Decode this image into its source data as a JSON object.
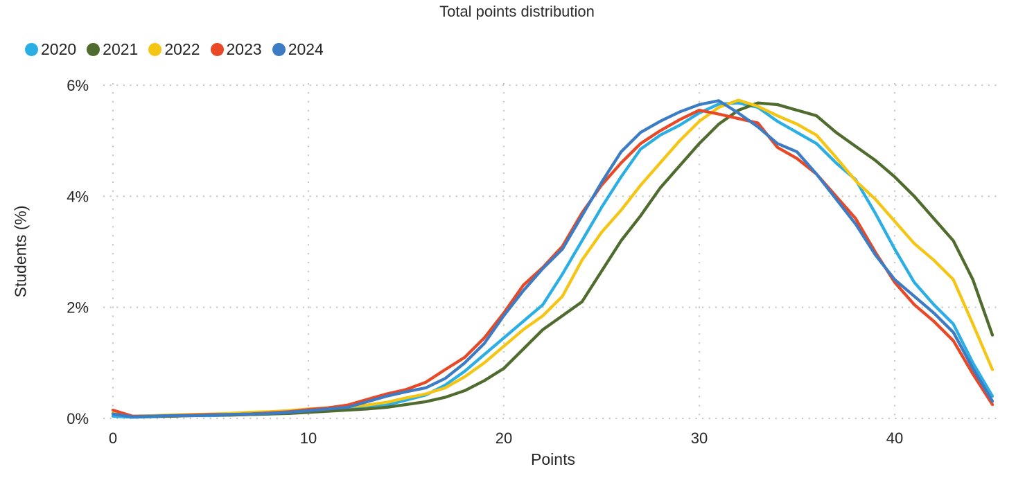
{
  "title": "Total points distribution",
  "legend": [
    {
      "label": "2020",
      "color": "#2AAEE4"
    },
    {
      "label": "2021",
      "color": "#4F6B2D"
    },
    {
      "label": "2022",
      "color": "#F5C514"
    },
    {
      "label": "2023",
      "color": "#E84826"
    },
    {
      "label": "2024",
      "color": "#3C7CC4"
    }
  ],
  "axes": {
    "x_label": "Points",
    "y_label": "Students (%)",
    "x_ticks": [
      0,
      10,
      20,
      30,
      40
    ],
    "y_ticks": [
      {
        "label": "0%",
        "value": 0
      },
      {
        "label": "2%",
        "value": 2
      },
      {
        "label": "4%",
        "value": 4
      },
      {
        "label": "6%",
        "value": 6
      }
    ],
    "x_range": [
      0,
      45
    ],
    "y_range": [
      0,
      6
    ],
    "grid": "dotted",
    "legend_position": "top-left"
  },
  "chart_data": {
    "type": "line",
    "title": "Total points distribution",
    "xlabel": "Points",
    "ylabel": "Students (%)",
    "ylim": [
      0,
      6
    ],
    "x": [
      0,
      1,
      2,
      3,
      4,
      5,
      6,
      7,
      8,
      9,
      10,
      11,
      12,
      13,
      14,
      15,
      16,
      17,
      18,
      19,
      20,
      21,
      22,
      23,
      24,
      25,
      26,
      27,
      28,
      29,
      30,
      31,
      32,
      33,
      34,
      35,
      36,
      37,
      38,
      39,
      40,
      41,
      42,
      43,
      44,
      45
    ],
    "series": [
      {
        "name": "2020",
        "color": "#2AAEE4",
        "values": [
          0.04,
          0.02,
          0.03,
          0.04,
          0.05,
          0.05,
          0.06,
          0.07,
          0.08,
          0.1,
          0.12,
          0.14,
          0.17,
          0.2,
          0.24,
          0.33,
          0.42,
          0.6,
          0.85,
          1.15,
          1.45,
          1.75,
          2.05,
          2.6,
          3.2,
          3.8,
          4.35,
          4.85,
          5.1,
          5.28,
          5.5,
          5.66,
          5.68,
          5.6,
          5.35,
          5.15,
          4.95,
          4.6,
          4.3,
          3.7,
          3.05,
          2.45,
          2.05,
          1.7,
          1.0,
          0.4
        ]
      },
      {
        "name": "2021",
        "color": "#4F6B2D",
        "values": [
          0.09,
          0.03,
          0.04,
          0.04,
          0.05,
          0.06,
          0.06,
          0.07,
          0.08,
          0.09,
          0.11,
          0.13,
          0.15,
          0.17,
          0.2,
          0.25,
          0.3,
          0.38,
          0.5,
          0.68,
          0.9,
          1.25,
          1.6,
          1.85,
          2.1,
          2.65,
          3.2,
          3.65,
          4.15,
          4.55,
          4.95,
          5.3,
          5.55,
          5.68,
          5.65,
          5.55,
          5.45,
          5.15,
          4.9,
          4.65,
          4.35,
          4.0,
          3.6,
          3.2,
          2.5,
          1.5
        ]
      },
      {
        "name": "2022",
        "color": "#F5C514",
        "values": [
          0.1,
          0.04,
          0.05,
          0.06,
          0.07,
          0.08,
          0.09,
          0.11,
          0.12,
          0.14,
          0.17,
          0.19,
          0.21,
          0.24,
          0.29,
          0.37,
          0.44,
          0.55,
          0.75,
          1.0,
          1.3,
          1.6,
          1.85,
          2.2,
          2.85,
          3.35,
          3.75,
          4.2,
          4.6,
          5.0,
          5.35,
          5.6,
          5.73,
          5.62,
          5.45,
          5.3,
          5.1,
          4.7,
          4.28,
          3.95,
          3.55,
          3.15,
          2.85,
          2.5,
          1.7,
          0.88
        ]
      },
      {
        "name": "2023",
        "color": "#E84826",
        "values": [
          0.15,
          0.04,
          0.04,
          0.05,
          0.06,
          0.07,
          0.07,
          0.08,
          0.1,
          0.12,
          0.16,
          0.19,
          0.24,
          0.34,
          0.44,
          0.52,
          0.65,
          0.88,
          1.1,
          1.45,
          1.9,
          2.4,
          2.72,
          3.1,
          3.7,
          4.2,
          4.6,
          4.95,
          5.18,
          5.38,
          5.55,
          5.48,
          5.4,
          5.32,
          4.88,
          4.68,
          4.4,
          4.0,
          3.6,
          3.0,
          2.45,
          2.05,
          1.75,
          1.4,
          0.8,
          0.25
        ]
      },
      {
        "name": "2024",
        "color": "#3C7CC4",
        "values": [
          0.08,
          0.03,
          0.04,
          0.05,
          0.05,
          0.06,
          0.07,
          0.08,
          0.09,
          0.11,
          0.14,
          0.17,
          0.2,
          0.3,
          0.4,
          0.48,
          0.55,
          0.72,
          1.0,
          1.35,
          1.85,
          2.3,
          2.7,
          3.05,
          3.65,
          4.25,
          4.8,
          5.15,
          5.35,
          5.52,
          5.65,
          5.72,
          5.5,
          5.25,
          4.95,
          4.8,
          4.4,
          3.95,
          3.5,
          2.95,
          2.5,
          2.2,
          1.9,
          1.55,
          0.9,
          0.31
        ]
      }
    ]
  }
}
